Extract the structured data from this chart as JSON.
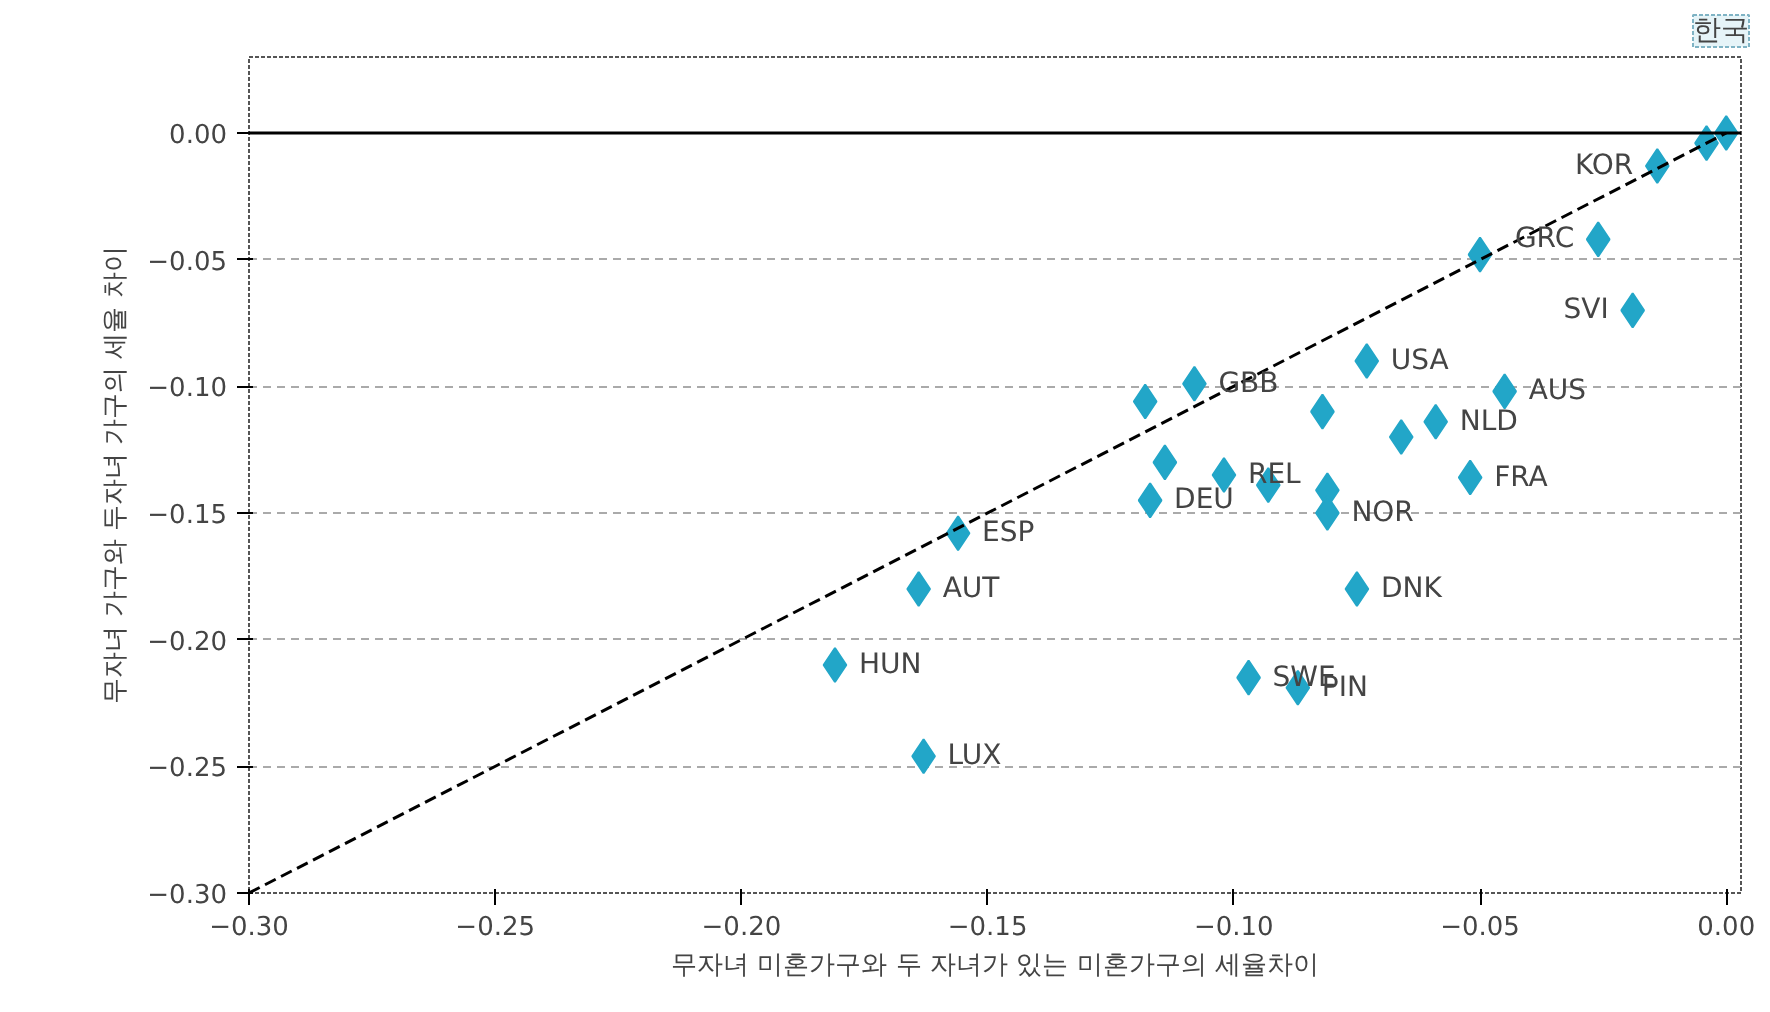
{
  "chart_data": {
    "type": "scatter",
    "xlabel": "무자녀 미혼가구와 두 자녀가 있는 미혼가구의 세율차이",
    "ylabel": "무자녀 가구와 두자녀 가구의 세율 차이",
    "x": [
      0.0,
      -0.004,
      -0.014,
      -0.026,
      -0.019,
      -0.05,
      -0.045,
      -0.073,
      -0.108,
      -0.118,
      -0.082,
      -0.059,
      -0.066,
      -0.052,
      -0.114,
      -0.102,
      -0.093,
      -0.081,
      -0.081,
      -0.117,
      -0.156,
      -0.164,
      -0.075,
      -0.181,
      -0.097,
      -0.087,
      -0.163
    ],
    "series": [
      {
        "color": "#22a6c8",
        "marker": "diamond",
        "values": [
          0.0,
          -0.004,
          -0.013,
          -0.042,
          -0.07,
          -0.048,
          -0.102,
          -0.09,
          -0.099,
          -0.106,
          -0.11,
          -0.114,
          -0.12,
          -0.136,
          -0.13,
          -0.135,
          -0.139,
          -0.141,
          -0.15,
          -0.145,
          -0.158,
          -0.18,
          -0.18,
          -0.21,
          -0.215,
          -0.219,
          -0.246
        ]
      },
      {
        "type": "line",
        "color": "#000000",
        "line_style": "dashed",
        "x": [
          -0.3,
          0.0
        ],
        "values": [
          -0.3,
          0.0
        ]
      }
    ],
    "xlim": [
      -0.3,
      0.003
    ],
    "ylim": [
      -0.3,
      0.03
    ],
    "xticks": [
      {
        "value": -0.3,
        "label": "−0.30"
      },
      {
        "value": -0.25,
        "label": "−0.25"
      },
      {
        "value": -0.2,
        "label": "−0.20"
      },
      {
        "value": -0.15,
        "label": "−0.15"
      },
      {
        "value": -0.1,
        "label": "−0.10"
      },
      {
        "value": -0.05,
        "label": "−0.05"
      },
      {
        "value": 0,
        "label": "0.00"
      }
    ],
    "yticks": [
      {
        "value": 0,
        "label": "0.00"
      },
      {
        "value": -0.05,
        "label": "−0.05"
      },
      {
        "value": -0.1,
        "label": "−0.10"
      },
      {
        "value": -0.15,
        "label": "−0.15"
      },
      {
        "value": -0.2,
        "label": "−0.20"
      },
      {
        "value": -0.25,
        "label": "−0.25"
      },
      {
        "value": -0.3,
        "label": "−0.30"
      }
    ],
    "grid": "y",
    "ref_lines": [
      {
        "axis": "y",
        "value": 0,
        "color": "#000000",
        "line_style": "solid"
      }
    ],
    "annotations": [
      "한국",
      {
        "text": "KOR",
        "x": -0.014,
        "y": -0.013
      },
      {
        "text": "GRC",
        "x": -0.026,
        "y": -0.042
      },
      {
        "text": "SVI",
        "x": -0.019,
        "y": -0.07
      },
      {
        "text": "USA",
        "x": -0.073,
        "y": -0.09
      },
      {
        "text": "AUS",
        "x": -0.045,
        "y": -0.102
      },
      {
        "text": "GBB",
        "x": -0.108,
        "y": -0.099
      },
      {
        "text": "FRA",
        "x": -0.052,
        "y": -0.136
      },
      {
        "text": "NLD",
        "x": -0.059,
        "y": -0.114
      },
      {
        "text": "REL",
        "x": -0.102,
        "y": -0.135
      },
      {
        "text": "DEU",
        "x": -0.117,
        "y": -0.145
      },
      {
        "text": "ESP",
        "x": -0.156,
        "y": -0.158
      },
      {
        "text": "AUT",
        "x": -0.164,
        "y": -0.18
      },
      {
        "text": "NOR",
        "x": -0.081,
        "y": -0.15
      },
      {
        "text": "DNK",
        "x": -0.075,
        "y": -0.18
      },
      {
        "text": "HUN",
        "x": -0.181,
        "y": -0.21
      },
      {
        "text": "SWE",
        "x": -0.097,
        "y": -0.215
      },
      {
        "text": "PIN",
        "x": -0.087,
        "y": -0.219
      },
      {
        "text": "LUX",
        "x": -0.163,
        "y": -0.246
      }
    ]
  }
}
